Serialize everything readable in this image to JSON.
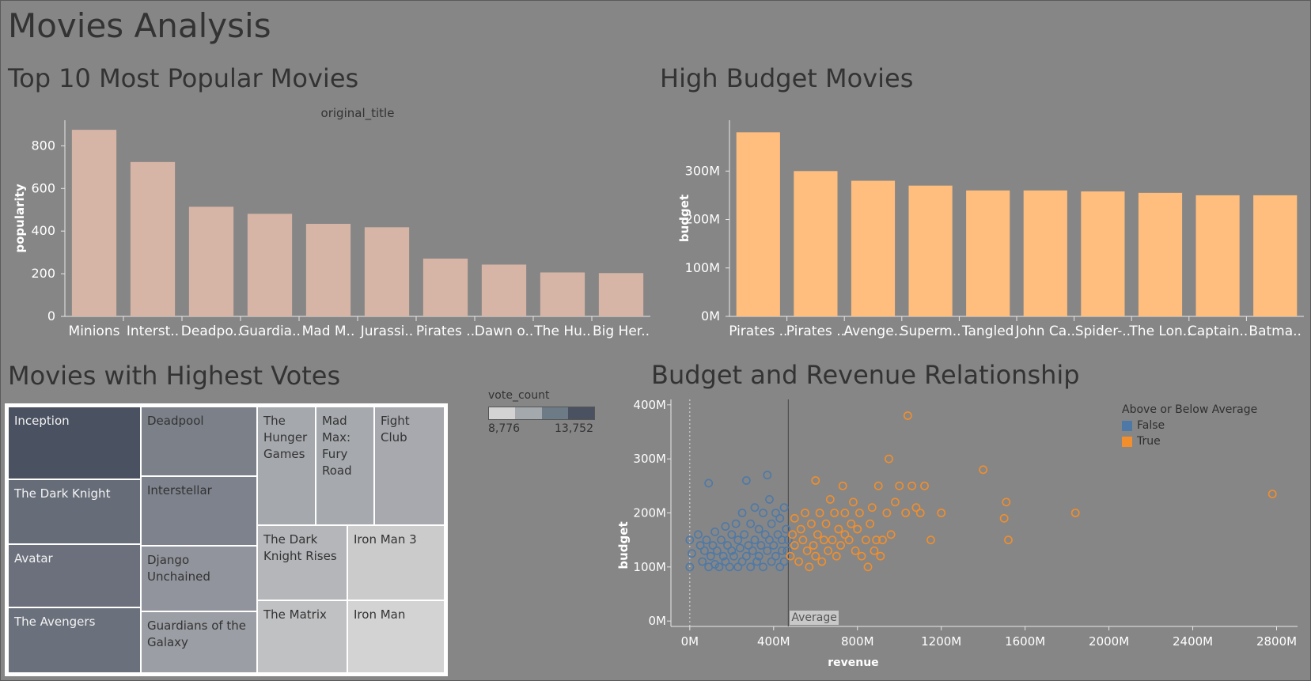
{
  "dashboard": {
    "title": "Movies Analysis"
  },
  "colors": {
    "background": "#868686",
    "popular_bar": "#d7b5a6",
    "budget_bar": "#ffbe7d",
    "false_series": "#4e79a7",
    "true_series": "#f28e2b"
  },
  "popular": {
    "title": "Top 10 Most Popular Movies",
    "chart_data": {
      "type": "bar",
      "title": "",
      "xlabel": "original_title",
      "ylabel": "popularity",
      "categories": [
        "Minions",
        "Interst..",
        "Deadpo..",
        "Guardia..",
        "Mad M..",
        "Jurassi..",
        "Pirates ..",
        "Dawn o..",
        "The Hu..",
        "Big Her.."
      ],
      "values": [
        875,
        724,
        514,
        481,
        434,
        418,
        271,
        243,
        206,
        203
      ],
      "ylim": [
        0,
        920
      ],
      "yticks": [
        0,
        200,
        400,
        600,
        800
      ],
      "grid": false
    }
  },
  "budget": {
    "title": "High Budget Movies",
    "chart_data": {
      "type": "bar",
      "title": "",
      "xlabel": "",
      "ylabel": "budget",
      "categories": [
        "Pirates ..",
        "Pirates ..",
        "Avenge..",
        "Superm..",
        "Tangled",
        "John Ca..",
        "Spider-..",
        "The Lon..",
        "Captain..",
        "Batma.."
      ],
      "values": [
        380,
        300,
        280,
        270,
        260,
        260,
        258,
        255,
        250,
        250
      ],
      "value_unit": "M",
      "ylim": [
        0,
        405
      ],
      "yticks": [
        "0M",
        "100M",
        "200M",
        "300M"
      ],
      "ytick_values": [
        0,
        100,
        200,
        300
      ],
      "grid": false
    }
  },
  "votes": {
    "title": "Movies with Highest Votes",
    "legend": {
      "title": "vote_count",
      "min_label": "8,776",
      "max_label": "13,752"
    },
    "cells": [
      {
        "label": "Inception",
        "vote_count": 13752
      },
      {
        "label": "The Dark Knight",
        "vote_count": 12002
      },
      {
        "label": "Avatar",
        "vote_count": 11800
      },
      {
        "label": "The Avengers",
        "vote_count": 11776
      },
      {
        "label": "Deadpool",
        "vote_count": 10995
      },
      {
        "label": "Interstellar",
        "vote_count": 10867
      },
      {
        "label": "Django Unchained",
        "vote_count": 10099
      },
      {
        "label": "Guardians of the Galaxy",
        "vote_count": 9742
      },
      {
        "label": "The Hunger Games",
        "vote_count": 9455
      },
      {
        "label": "Mad Max: Fury Road",
        "vote_count": 9427
      },
      {
        "label": "Fight Club",
        "vote_count": 9413
      },
      {
        "label": "The Dark Knight Rises",
        "vote_count": 9106
      },
      {
        "label": "Iron Man 3",
        "vote_count": 8806
      },
      {
        "label": "The Matrix",
        "vote_count": 8907
      },
      {
        "label": "Iron Man",
        "vote_count": 8776
      }
    ]
  },
  "relationship": {
    "title": "Budget and Revenue Relationship",
    "reference_label": "Average",
    "legend_title": "Above or Below Average",
    "chart_data": {
      "type": "scatter",
      "title": "",
      "xlabel": "revenue",
      "ylabel": "budget",
      "xlim": [
        -90,
        2900
      ],
      "ylim": [
        -10,
        410
      ],
      "xticks": [
        "0M",
        "400M",
        "800M",
        "1200M",
        "1600M",
        "2000M",
        "2400M",
        "2800M"
      ],
      "xtick_values": [
        0,
        400,
        800,
        1200,
        1600,
        2000,
        2400,
        2800
      ],
      "yticks": [
        "0M",
        "100M",
        "200M",
        "300M",
        "400M"
      ],
      "ytick_values": [
        0,
        100,
        200,
        300,
        400
      ],
      "reference_line_x": 470,
      "series": [
        {
          "name": "False",
          "points": [
            [
              0,
              100
            ],
            [
              0,
              150
            ],
            [
              10,
              125
            ],
            [
              40,
              160
            ],
            [
              50,
              140
            ],
            [
              60,
              110
            ],
            [
              70,
              130
            ],
            [
              80,
              150
            ],
            [
              90,
              100
            ],
            [
              90,
              255
            ],
            [
              100,
              120
            ],
            [
              110,
              140
            ],
            [
              120,
              105
            ],
            [
              120,
              165
            ],
            [
              130,
              130
            ],
            [
              140,
              100
            ],
            [
              150,
              150
            ],
            [
              160,
              120
            ],
            [
              170,
              110
            ],
            [
              170,
              175
            ],
            [
              180,
              140
            ],
            [
              190,
              100
            ],
            [
              200,
              130
            ],
            [
              200,
              160
            ],
            [
              210,
              120
            ],
            [
              220,
              180
            ],
            [
              230,
              100
            ],
            [
              230,
              150
            ],
            [
              240,
              135
            ],
            [
              250,
              110
            ],
            [
              250,
              200
            ],
            [
              260,
              160
            ],
            [
              270,
              120
            ],
            [
              270,
              260
            ],
            [
              280,
              140
            ],
            [
              290,
              100
            ],
            [
              290,
              180
            ],
            [
              300,
              130
            ],
            [
              310,
              150
            ],
            [
              310,
              210
            ],
            [
              320,
              110
            ],
            [
              330,
              170
            ],
            [
              330,
              120
            ],
            [
              340,
              140
            ],
            [
              350,
              100
            ],
            [
              350,
              200
            ],
            [
              360,
              160
            ],
            [
              370,
              130
            ],
            [
              370,
              270
            ],
            [
              380,
              150
            ],
            [
              380,
              225
            ],
            [
              390,
              110
            ],
            [
              390,
              180
            ],
            [
              400,
              140
            ],
            [
              410,
              120
            ],
            [
              410,
              200
            ],
            [
              420,
              160
            ],
            [
              430,
              100
            ],
            [
              430,
              190
            ],
            [
              440,
              130
            ],
            [
              440,
              150
            ],
            [
              450,
              110
            ],
            [
              450,
              210
            ],
            [
              460,
              170
            ],
            [
              465,
              130
            ],
            [
              470,
              150
            ]
          ]
        },
        {
          "name": "True",
          "points": [
            [
              480,
              120
            ],
            [
              490,
              160
            ],
            [
              500,
              140
            ],
            [
              500,
              190
            ],
            [
              520,
              110
            ],
            [
              530,
              170
            ],
            [
              540,
              150
            ],
            [
              550,
              200
            ],
            [
              560,
              130
            ],
            [
              570,
              100
            ],
            [
              580,
              180
            ],
            [
              590,
              140
            ],
            [
              600,
              120
            ],
            [
              600,
              260
            ],
            [
              610,
              160
            ],
            [
              620,
              200
            ],
            [
              630,
              110
            ],
            [
              640,
              150
            ],
            [
              650,
              180
            ],
            [
              660,
              130
            ],
            [
              670,
              225
            ],
            [
              680,
              150
            ],
            [
              690,
              200
            ],
            [
              700,
              120
            ],
            [
              710,
              170
            ],
            [
              720,
              140
            ],
            [
              730,
              250
            ],
            [
              740,
              160
            ],
            [
              740,
              200
            ],
            [
              760,
              150
            ],
            [
              770,
              180
            ],
            [
              780,
              220
            ],
            [
              790,
              130
            ],
            [
              800,
              170
            ],
            [
              810,
              200
            ],
            [
              820,
              120
            ],
            [
              840,
              150
            ],
            [
              850,
              100
            ],
            [
              860,
              180
            ],
            [
              870,
              210
            ],
            [
              880,
              130
            ],
            [
              890,
              150
            ],
            [
              900,
              250
            ],
            [
              910,
              120
            ],
            [
              920,
              150
            ],
            [
              940,
              200
            ],
            [
              950,
              300
            ],
            [
              960,
              160
            ],
            [
              980,
              220
            ],
            [
              1000,
              250
            ],
            [
              1030,
              200
            ],
            [
              1040,
              380
            ],
            [
              1060,
              250
            ],
            [
              1080,
              210
            ],
            [
              1100,
              200
            ],
            [
              1120,
              250
            ],
            [
              1150,
              150
            ],
            [
              1200,
              200
            ],
            [
              1400,
              280
            ],
            [
              1500,
              190
            ],
            [
              1510,
              220
            ],
            [
              1520,
              150
            ],
            [
              1840,
              200
            ],
            [
              2780,
              235
            ]
          ]
        }
      ]
    }
  }
}
